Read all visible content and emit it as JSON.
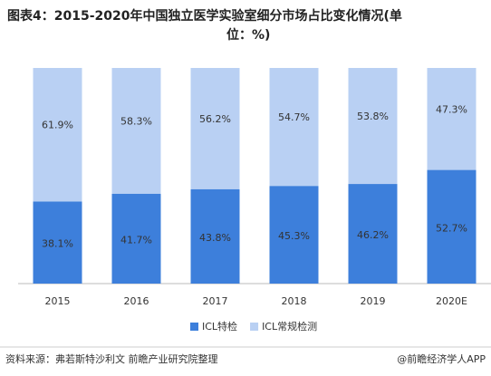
{
  "chart_data": {
    "type": "stacked-bar",
    "title": "图表4：2015-2020年中国独立医学实验室细分市场占比变化情况(单位：%)",
    "categories": [
      "2015",
      "2016",
      "2017",
      "2018",
      "2019",
      "2020E"
    ],
    "series": [
      {
        "name": "ICL特检",
        "color": "#3d7fdb",
        "values": [
          38.1,
          41.7,
          43.8,
          45.3,
          46.2,
          52.7
        ],
        "value_labels": [
          "38.1%",
          "41.7%",
          "43.8%",
          "45.3%",
          "46.2%",
          "52.7%"
        ]
      },
      {
        "name": "ICL常规检测",
        "color": "#b9d0f3",
        "values": [
          61.9,
          58.3,
          56.2,
          54.7,
          53.8,
          47.3
        ],
        "value_labels": [
          "61.9%",
          "58.3%",
          "56.2%",
          "54.7%",
          "53.8%",
          "47.3%"
        ]
      }
    ]
  },
  "source": "资料来源：弗若斯特沙利文 前瞻产业研究院整理",
  "credit": "@前瞻经济学人APP"
}
